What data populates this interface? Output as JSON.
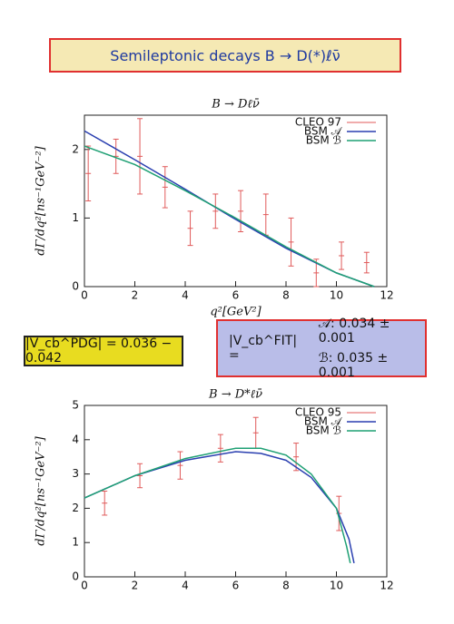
{
  "header": {
    "title": "Semileptonic decays B → D(*)ℓν̄"
  },
  "boxes": {
    "pdg": "|V_cb^PDG| = 0.036 − 0.042",
    "fit_label": "|V_cb^FIT| =",
    "fit_a": "𝒜: 0.034 ± 0.001",
    "fit_b": "ℬ: 0.035 ± 0.001"
  },
  "chart_data": [
    {
      "type": "line",
      "title": "B → Dℓν̄",
      "x_label": "q²[GeV²]",
      "y_label": "dΓ/dq²[ns⁻¹GeV⁻²]",
      "xlim": [
        0,
        12
      ],
      "xticks": [
        0,
        2,
        4,
        6,
        8,
        10,
        12
      ],
      "ylim": [
        0,
        2.5
      ],
      "yticks": [
        0,
        1,
        2
      ],
      "legend": "upper right",
      "series": [
        {
          "name": "CLEO 97",
          "color": "#e05a5a",
          "style": "errorbar",
          "x": [
            0.15,
            1.25,
            2.2,
            3.2,
            4.2,
            5.2,
            6.2,
            7.2,
            8.2,
            9.2,
            10.2,
            11.2
          ],
          "values": [
            1.65,
            1.9,
            1.9,
            1.45,
            0.85,
            1.1,
            1.1,
            1.05,
            0.65,
            0.2,
            0.45,
            0.35
          ],
          "errors": [
            0.4,
            0.25,
            0.55,
            0.3,
            0.25,
            0.25,
            0.3,
            0.3,
            0.35,
            0.2,
            0.2,
            0.15
          ]
        },
        {
          "name": "BSM 𝒜",
          "color": "#2a3fb0",
          "style": "line",
          "x": [
            0,
            2,
            4,
            6,
            8,
            10,
            11.5
          ],
          "values": [
            2.27,
            1.85,
            1.42,
            0.98,
            0.56,
            0.2,
            0
          ]
        },
        {
          "name": "BSM ℬ",
          "color": "#1fa074",
          "style": "line",
          "x": [
            0,
            2,
            4,
            6,
            8,
            10,
            11.5
          ],
          "values": [
            2.05,
            1.78,
            1.4,
            1.0,
            0.58,
            0.2,
            0
          ]
        }
      ]
    },
    {
      "type": "line",
      "title": "B → D*ℓν̄",
      "y_label": "dΓ/dq²[ns⁻¹GeV⁻²]",
      "xlim": [
        0,
        12
      ],
      "xticks": [
        0,
        2,
        4,
        6,
        8,
        10,
        12
      ],
      "ylim": [
        0,
        5
      ],
      "yticks": [
        0,
        1,
        2,
        3,
        4,
        5
      ],
      "legend": "upper right",
      "series": [
        {
          "name": "CLEO 95",
          "color": "#e05a5a",
          "style": "errorbar",
          "x": [
            0.8,
            2.2,
            3.8,
            5.4,
            6.8,
            8.4,
            10.1
          ],
          "values": [
            2.15,
            2.95,
            3.25,
            3.75,
            4.2,
            3.5,
            1.85
          ],
          "errors": [
            0.35,
            0.35,
            0.4,
            0.4,
            0.45,
            0.4,
            0.5
          ]
        },
        {
          "name": "BSM 𝒜",
          "color": "#2a3fb0",
          "style": "line",
          "x": [
            0,
            2,
            4,
            6,
            7,
            8,
            9,
            10,
            10.5,
            10.7
          ],
          "values": [
            2.3,
            2.95,
            3.4,
            3.65,
            3.6,
            3.4,
            2.9,
            2.0,
            1.1,
            0.4
          ]
        },
        {
          "name": "BSM ℬ",
          "color": "#1fa074",
          "style": "line",
          "x": [
            0,
            2,
            4,
            6,
            7,
            8,
            9,
            10,
            10.4,
            10.55
          ],
          "values": [
            2.3,
            2.95,
            3.45,
            3.75,
            3.75,
            3.55,
            3.0,
            2.0,
            0.9,
            0.4
          ]
        }
      ]
    }
  ]
}
